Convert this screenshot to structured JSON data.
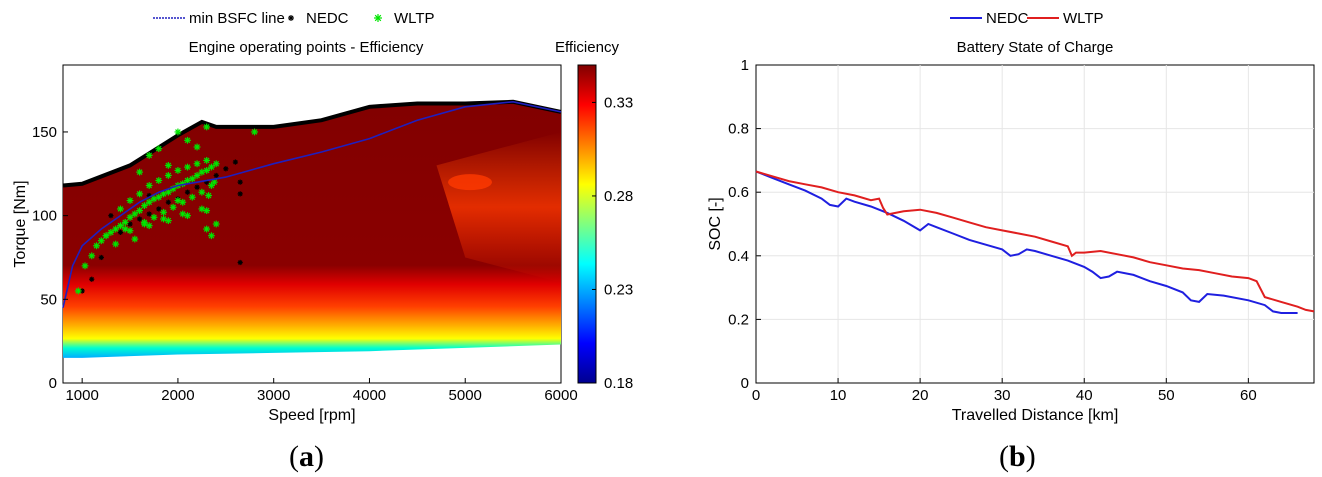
{
  "chart_data": [
    {
      "type": "heatmap",
      "title": "Engine operating points - Efficiency",
      "xlabel": "Speed [rpm]",
      "ylabel": "Torque [Nm]",
      "xlim": [
        800,
        6000
      ],
      "ylim": [
        0,
        190
      ],
      "xticks": [
        "1000",
        "2000",
        "3000",
        "4000",
        "5000",
        "6000"
      ],
      "yticks": [
        "0",
        "50",
        "100",
        "150"
      ],
      "colorbar": {
        "label": "Efficiency",
        "range": [
          0.18,
          0.35
        ],
        "ticks": [
          "0.18",
          "0.23",
          "0.28",
          "0.33"
        ]
      },
      "legend": {
        "placement": "top",
        "entries": [
          "min BSFC line",
          "NEDC",
          "WLTP"
        ]
      },
      "max_torque": {
        "x": [
          800,
          1000,
          1500,
          2000,
          2250,
          2400,
          3000,
          3500,
          4000,
          4500,
          5000,
          5500,
          6000
        ],
        "y": [
          118,
          119,
          130,
          148,
          156,
          153,
          153,
          157,
          165,
          167,
          167,
          168,
          162
        ]
      },
      "min_torque": {
        "x": [
          800,
          1000,
          2000,
          3000,
          4000,
          5000,
          6000
        ],
        "y": [
          15,
          15,
          17,
          18,
          19,
          21,
          23
        ]
      },
      "series": [
        {
          "name": "min BSFC line",
          "color": "#1f1fbf",
          "x": [
            800,
            900,
            1000,
            1200,
            1400,
            1600,
            1800,
            2000,
            2200,
            2500,
            3000,
            3500,
            4000,
            4500,
            5000,
            5500,
            6000
          ],
          "y": [
            45,
            70,
            82,
            92,
            100,
            108,
            114,
            118,
            120,
            123,
            131,
            138,
            146,
            157,
            165,
            168,
            162
          ]
        },
        {
          "name": "NEDC",
          "color": "#000000",
          "marker": "*",
          "x": [
            1000,
            1100,
            1200,
            1400,
            1500,
            1600,
            1700,
            1800,
            1900,
            2000,
            2100,
            2200,
            2300,
            2400,
            2500,
            2600,
            2650,
            2650,
            2650,
            1300,
            1700
          ],
          "y": [
            55,
            62,
            75,
            90,
            95,
            98,
            101,
            104,
            108,
            110,
            114,
            117,
            120,
            124,
            128,
            132,
            113,
            120,
            72,
            100,
            112
          ]
        },
        {
          "name": "WLTP",
          "color": "#00e600",
          "marker": "*",
          "x": [
            960,
            1030,
            1100,
            1150,
            1200,
            1250,
            1300,
            1350,
            1400,
            1450,
            1500,
            1550,
            1600,
            1650,
            1700,
            1750,
            1800,
            1850,
            1900,
            1950,
            2000,
            2050,
            2100,
            2150,
            2200,
            2250,
            2300,
            2350,
            2400,
            1400,
            1500,
            1600,
            1700,
            1800,
            1900,
            2000,
            2100,
            2200,
            2300,
            1650,
            1750,
            1850,
            1950,
            2050,
            2150,
            2250,
            2350,
            1500,
            1700,
            1900,
            2100,
            2300,
            1250,
            1450,
            1650,
            1850,
            2050,
            2250,
            2300,
            2350,
            2400,
            2800,
            1800,
            2000,
            1700,
            2200,
            1600,
            1900,
            2100,
            2300,
            2000,
            1550,
            1350,
            2320,
            2380
          ],
          "y": [
            55,
            70,
            76,
            82,
            85,
            88,
            90,
            92,
            94,
            96,
            99,
            101,
            103,
            106,
            108,
            110,
            111,
            113,
            114,
            116,
            118,
            119,
            121,
            122,
            124,
            126,
            127,
            129,
            131,
            104,
            109,
            113,
            118,
            121,
            124,
            127,
            129,
            131,
            133,
            96,
            99,
            102,
            105,
            108,
            111,
            114,
            118,
            91,
            94,
            97,
            100,
            103,
            88,
            92,
            95,
            98,
            101,
            104,
            92,
            88,
            95,
            150,
            140,
            150,
            136,
            141,
            126,
            130,
            145,
            153,
            109,
            86,
            83,
            112,
            120
          ]
        }
      ]
    },
    {
      "type": "line",
      "title": "Battery State of Charge",
      "xlabel": "Travelled Distance [km]",
      "ylabel": "SOC [-]",
      "xlim": [
        0,
        68
      ],
      "ylim": [
        0,
        1
      ],
      "xticks": [
        "0",
        "10",
        "20",
        "30",
        "40",
        "50",
        "60"
      ],
      "yticks": [
        "0",
        "0.2",
        "0.4",
        "0.6",
        "0.8",
        "1"
      ],
      "grid": true,
      "legend": {
        "placement": "top",
        "entries": [
          "NEDC",
          "WLTP"
        ]
      },
      "series": [
        {
          "name": "NEDC",
          "color": "#1f1fe0",
          "x": [
            0,
            2,
            4,
            6,
            8,
            9,
            10,
            11,
            12,
            14,
            16,
            18,
            20,
            21,
            22,
            24,
            26,
            28,
            30,
            31,
            32,
            33,
            34,
            36,
            38,
            40,
            41,
            42,
            43,
            44,
            46,
            48,
            50,
            52,
            53,
            54,
            55,
            57,
            60,
            62,
            63,
            64,
            65,
            66
          ],
          "y": [
            0.665,
            0.645,
            0.625,
            0.605,
            0.58,
            0.56,
            0.555,
            0.58,
            0.57,
            0.555,
            0.535,
            0.51,
            0.48,
            0.5,
            0.49,
            0.47,
            0.45,
            0.435,
            0.42,
            0.4,
            0.405,
            0.42,
            0.415,
            0.4,
            0.385,
            0.365,
            0.35,
            0.33,
            0.335,
            0.35,
            0.34,
            0.32,
            0.305,
            0.285,
            0.26,
            0.255,
            0.28,
            0.275,
            0.26,
            0.245,
            0.225,
            0.22,
            0.22,
            0.22
          ]
        },
        {
          "name": "WLTP",
          "color": "#e01f1f",
          "x": [
            0,
            2,
            4,
            6,
            8,
            10,
            12,
            14,
            15,
            15.5,
            16,
            17,
            18,
            20,
            22,
            24,
            26,
            28,
            30,
            32,
            34,
            36,
            38,
            38.5,
            39,
            40,
            42,
            44,
            46,
            48,
            50,
            52,
            54,
            56,
            58,
            60,
            61,
            62,
            64,
            66,
            67,
            68
          ],
          "y": [
            0.665,
            0.65,
            0.635,
            0.625,
            0.615,
            0.6,
            0.59,
            0.575,
            0.58,
            0.55,
            0.53,
            0.535,
            0.54,
            0.545,
            0.535,
            0.52,
            0.505,
            0.49,
            0.48,
            0.47,
            0.46,
            0.445,
            0.43,
            0.4,
            0.41,
            0.41,
            0.415,
            0.405,
            0.395,
            0.38,
            0.37,
            0.36,
            0.355,
            0.345,
            0.335,
            0.33,
            0.32,
            0.27,
            0.255,
            0.24,
            0.23,
            0.225
          ]
        }
      ]
    }
  ],
  "labels": {
    "a_open": "(",
    "a_letter": "a",
    "a_close": ")",
    "b_open": "(",
    "b_letter": "b",
    "b_close": ")"
  }
}
